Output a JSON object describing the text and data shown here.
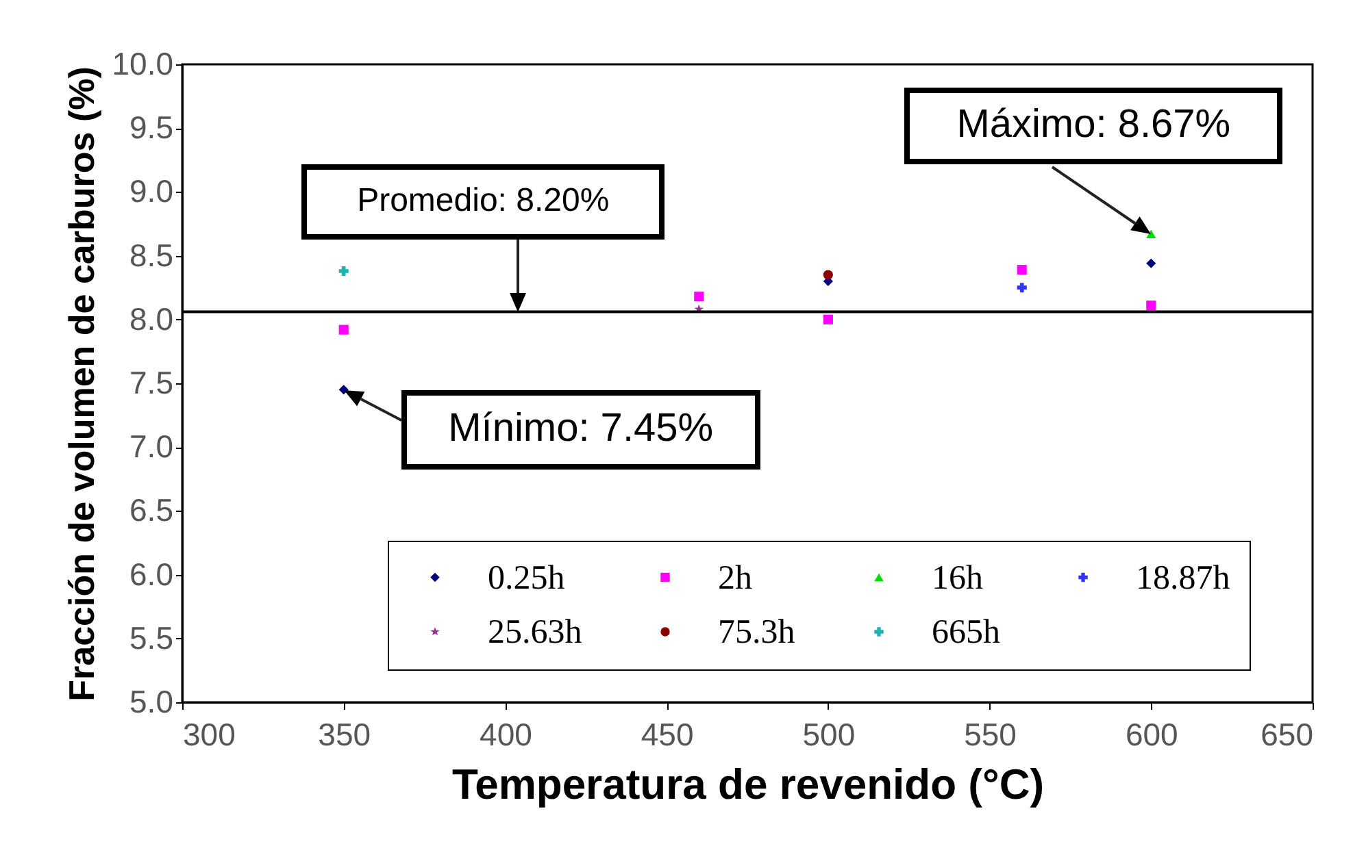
{
  "chart_data": {
    "type": "scatter",
    "xlabel": "Temperatura de revenido (°C)",
    "ylabel": "Fracción de volumen de carburos (%)",
    "xlim": [
      300,
      650
    ],
    "xticks": [
      300,
      350,
      400,
      450,
      500,
      550,
      600,
      650
    ],
    "ylim": [
      5,
      10
    ],
    "yticks": [
      {
        "value": 5,
        "label": "5.0"
      },
      {
        "value": 5.5,
        "label": "5.5"
      },
      {
        "value": 6,
        "label": "6.0"
      },
      {
        "value": 6.5,
        "label": "6.5"
      },
      {
        "value": 7,
        "label": "7.0"
      },
      {
        "value": 7.5,
        "label": "7.5"
      },
      {
        "value": 8,
        "label": "8.0"
      },
      {
        "value": 8.5,
        "label": "8.5"
      },
      {
        "value": 9,
        "label": "9.0"
      },
      {
        "value": 9.5,
        "label": "9.5"
      },
      {
        "value": 10,
        "label": "10.0"
      }
    ],
    "grid": false,
    "legend": "bottom",
    "series": [
      {
        "name": "0.25h",
        "color": "#000080",
        "marker": "diamond",
        "x": [
          350,
          500,
          600
        ],
        "values": [
          7.45,
          8.3,
          8.44
        ]
      },
      {
        "name": "2h",
        "color": "#ff00ff",
        "marker": "square",
        "x": [
          350,
          460,
          500,
          560,
          600
        ],
        "values": [
          7.92,
          8.18,
          8.0,
          8.39,
          8.11
        ]
      },
      {
        "name": "16h",
        "color": "#00dd00",
        "marker": "triangle",
        "x": [
          600
        ],
        "values": [
          8.67
        ]
      },
      {
        "name": "18.87h",
        "color": "#3333ff",
        "marker": "cross",
        "x": [
          560
        ],
        "values": [
          8.25
        ]
      },
      {
        "name": "25.63h",
        "color": "#993399",
        "marker": "star",
        "x": [
          460
        ],
        "values": [
          8.08
        ]
      },
      {
        "name": "75.3h",
        "color": "#8b0000",
        "marker": "circle",
        "x": [
          500
        ],
        "values": [
          8.35
        ]
      },
      {
        "name": "665h",
        "color": "#20b0b0",
        "marker": "cross",
        "x": [
          350
        ],
        "values": [
          8.38
        ]
      }
    ],
    "ref_lines": [
      {
        "axis": "y",
        "value": 8.06,
        "color": "#000000"
      }
    ],
    "annotations": [
      {
        "text": "Máximo: 8.67%",
        "x": 600,
        "y": 8.67
      },
      {
        "text": "Promedio: 8.20%",
        "x": 404,
        "y": 8.06
      },
      {
        "text": "Mínimo: 7.45%",
        "x": 350,
        "y": 7.45
      }
    ]
  }
}
